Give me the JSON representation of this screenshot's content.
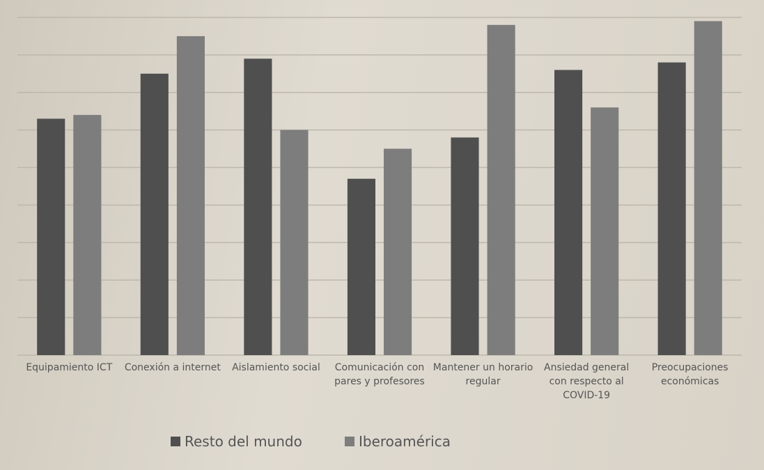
{
  "chart_data": {
    "type": "bar",
    "categories": [
      "Equipamiento ICT",
      "Conexión a internet",
      "Aislamiento social",
      "Comunicación con pares y profesores",
      "Mantener un horario regular",
      "Ansiedad general con respecto al COVID-19",
      "Preocupaciones económicas"
    ],
    "series": [
      {
        "name": "Resto del mundo",
        "color": "#4f4f4f",
        "values": [
          6.3,
          7.5,
          7.9,
          4.7,
          5.8,
          7.6,
          7.8
        ]
      },
      {
        "name": "Iberoamérica",
        "color": "#7d7d7d",
        "values": [
          6.4,
          8.5,
          6.0,
          5.5,
          8.8,
          6.6,
          8.9
        ]
      }
    ],
    "ylim": [
      0,
      9
    ],
    "grid": true,
    "legend": "bottom"
  }
}
